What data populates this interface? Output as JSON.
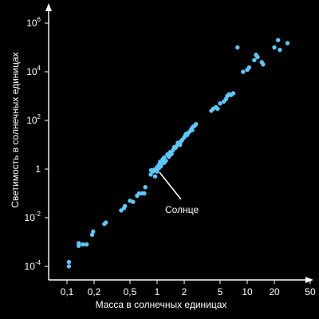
{
  "chart_data": {
    "type": "scatter",
    "xlabel": "Масса в солнечных единицах",
    "ylabel": "Светимость в солнечных единицах",
    "x_scale": "log",
    "y_scale": "log",
    "xlim": [
      0.07,
      50
    ],
    "ylim": [
      1e-05,
      5000000
    ],
    "grid": false,
    "colors": {
      "background": "#000000",
      "axes": "#ffffff",
      "points": "#5ac8fa"
    },
    "x_ticks": [
      {
        "value": 0.1,
        "label": "0,1"
      },
      {
        "value": 0.2,
        "label": "0,2"
      },
      {
        "value": 0.5,
        "label": "0,5"
      },
      {
        "value": 1,
        "label": "1"
      },
      {
        "value": 2,
        "label": "2"
      },
      {
        "value": 5,
        "label": "5"
      },
      {
        "value": 10,
        "label": "10"
      },
      {
        "value": 20,
        "label": "20"
      },
      {
        "value": 50,
        "label": "50"
      }
    ],
    "y_ticks": [
      {
        "value": 0.0001,
        "base": "10",
        "exp": "-4"
      },
      {
        "value": 0.01,
        "base": "10",
        "exp": "-2"
      },
      {
        "value": 1,
        "base": "1",
        "exp": ""
      },
      {
        "value": 100,
        "base": "10",
        "exp": "2"
      },
      {
        "value": 10000,
        "base": "10",
        "exp": "4"
      },
      {
        "value": 1000000,
        "base": "10",
        "exp": "6"
      }
    ],
    "annotation": {
      "text": "Солнце",
      "x": 1.0,
      "y": 1.0
    },
    "points": [
      [
        0.105,
        0.0001
      ],
      [
        0.105,
        0.00015
      ],
      [
        0.135,
        0.0007
      ],
      [
        0.135,
        0.0009
      ],
      [
        0.15,
        0.0008
      ],
      [
        0.165,
        0.0008
      ],
      [
        0.19,
        0.002
      ],
      [
        0.195,
        0.0027
      ],
      [
        0.26,
        0.0055
      ],
      [
        0.27,
        0.0063
      ],
      [
        0.4,
        0.02
      ],
      [
        0.43,
        0.025
      ],
      [
        0.44,
        0.03
      ],
      [
        0.5,
        0.05
      ],
      [
        0.54,
        0.045
      ],
      [
        0.6,
        0.08
      ],
      [
        0.63,
        0.1
      ],
      [
        0.68,
        0.1
      ],
      [
        0.72,
        0.1
      ],
      [
        0.74,
        0.18
      ],
      [
        0.85,
        0.6
      ],
      [
        0.86,
        0.9
      ],
      [
        0.9,
        0.8
      ],
      [
        0.95,
        0.5
      ],
      [
        0.97,
        0.9
      ],
      [
        1.0,
        0.8
      ],
      [
        1.0,
        1.2
      ],
      [
        1.05,
        1.5
      ],
      [
        1.08,
        2.0
      ],
      [
        1.12,
        1.7
      ],
      [
        1.15,
        2.5
      ],
      [
        1.2,
        3.0
      ],
      [
        1.2,
        1.8
      ],
      [
        1.25,
        2.2
      ],
      [
        1.3,
        4.0
      ],
      [
        1.35,
        3.2
      ],
      [
        1.4,
        5.0
      ],
      [
        1.45,
        4.2
      ],
      [
        1.5,
        6.0
      ],
      [
        1.6,
        7.5
      ],
      [
        1.65,
        9.0
      ],
      [
        1.7,
        12
      ],
      [
        1.8,
        10
      ],
      [
        1.85,
        14
      ],
      [
        1.9,
        16
      ],
      [
        2.0,
        20
      ],
      [
        2.05,
        24
      ],
      [
        2.1,
        28
      ],
      [
        2.2,
        30
      ],
      [
        2.3,
        35
      ],
      [
        2.4,
        45
      ],
      [
        2.5,
        55
      ],
      [
        2.6,
        60
      ],
      [
        2.7,
        70
      ],
      [
        1.05,
        1.1
      ],
      [
        0.93,
        0.95
      ],
      [
        1.1,
        1.3
      ],
      [
        1.18,
        2.6
      ],
      [
        1.38,
        3.6
      ],
      [
        1.55,
        8.0
      ],
      [
        1.75,
        11
      ],
      [
        2.15,
        25
      ],
      [
        2.45,
        40
      ],
      [
        4.0,
        250
      ],
      [
        4.2,
        300
      ],
      [
        4.5,
        350
      ],
      [
        4.7,
        300
      ],
      [
        5.0,
        500
      ],
      [
        5.5,
        600
      ],
      [
        5.8,
        750
      ],
      [
        6.0,
        1000
      ],
      [
        6.3,
        1200
      ],
      [
        6.6,
        1100
      ],
      [
        7.0,
        1300
      ],
      [
        7.8,
        100000
      ],
      [
        9.0,
        10000
      ],
      [
        10.0,
        12000
      ],
      [
        10.5,
        15000
      ],
      [
        12.0,
        30000
      ],
      [
        12.5,
        50000
      ],
      [
        13.0,
        40000
      ],
      [
        14.5,
        25000
      ],
      [
        15.0,
        20000
      ],
      [
        20.0,
        100000
      ],
      [
        22.0,
        200000
      ],
      [
        23.0,
        80000
      ],
      [
        28.0,
        150000
      ]
    ]
  }
}
